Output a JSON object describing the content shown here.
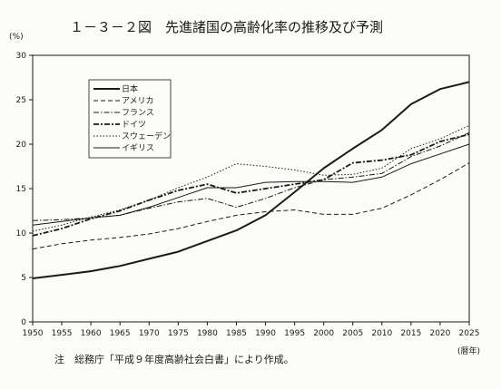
{
  "chart_data": {
    "type": "line",
    "title": "１－３－２図　先進諸国の高齢化率の推移及び予測",
    "ylabel": "(%)",
    "xlabel": "(暦年)",
    "note": "注　総務庁「平成９年度高齢社会白書」により作成。",
    "ylim": [
      0,
      30
    ],
    "yticks": [
      0,
      5,
      10,
      15,
      20,
      25,
      30
    ],
    "xlim": [
      1950,
      2025
    ],
    "x": [
      1950,
      1955,
      1960,
      1965,
      1970,
      1975,
      1980,
      1985,
      1990,
      1995,
      2000,
      2005,
      2010,
      2015,
      2020,
      2025
    ],
    "grid": false,
    "legend_position": "top-left",
    "series": [
      {
        "name": "日本",
        "style": "solid-bold",
        "values": [
          4.9,
          5.3,
          5.7,
          6.3,
          7.1,
          7.9,
          9.1,
          10.3,
          12.0,
          14.6,
          17.3,
          19.5,
          21.6,
          24.5,
          26.2,
          27.0
        ]
      },
      {
        "name": "アメリカ",
        "style": "dashed",
        "values": [
          8.2,
          8.8,
          9.2,
          9.5,
          9.9,
          10.5,
          11.3,
          12.0,
          12.4,
          12.6,
          12.1,
          12.1,
          12.8,
          14.3,
          16.0,
          17.9
        ]
      },
      {
        "name": "フランス",
        "style": "dashdot",
        "values": [
          11.4,
          11.5,
          11.7,
          12.0,
          12.8,
          13.5,
          13.9,
          12.9,
          13.9,
          15.1,
          16.0,
          16.3,
          16.7,
          18.6,
          19.8,
          21.3
        ]
      },
      {
        "name": "ドイツ",
        "style": "dashdot-bold",
        "values": [
          9.7,
          10.5,
          11.6,
          12.5,
          13.7,
          14.8,
          15.5,
          14.5,
          15.0,
          15.5,
          16.0,
          17.9,
          18.2,
          18.8,
          20.3,
          21.1
        ]
      },
      {
        "name": "スウェーデン",
        "style": "dotted",
        "values": [
          10.2,
          10.9,
          11.8,
          12.6,
          13.7,
          15.1,
          16.3,
          17.8,
          17.5,
          17.1,
          16.5,
          16.6,
          17.3,
          19.5,
          20.6,
          22.1
        ]
      },
      {
        "name": "イギリス",
        "style": "solid-thin",
        "values": [
          10.9,
          11.3,
          11.7,
          12.0,
          12.9,
          14.0,
          15.1,
          15.1,
          15.7,
          15.8,
          15.8,
          15.7,
          16.3,
          17.8,
          18.9,
          20.0
        ]
      }
    ]
  }
}
